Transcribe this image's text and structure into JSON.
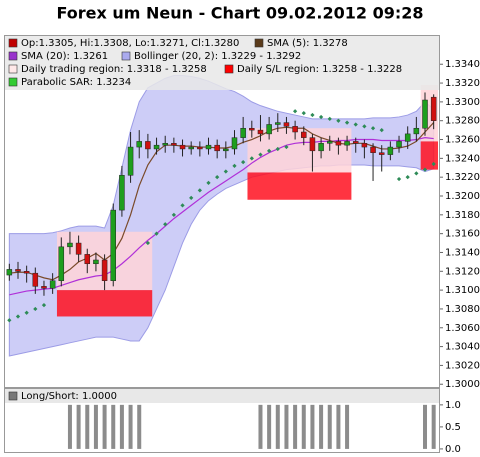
{
  "chart_data": [
    {
      "type": "candlestick",
      "title": "Forex um Neun - Chart 09.02.2012 09:28",
      "legend": [
        {
          "label": "Op:1.3305, Hi:1.3308, Lo:1.3271, Cl:1.3280",
          "color": "#c00000"
        },
        {
          "label": "SMA (5): 1.3278",
          "color": "#5a3a1a"
        },
        {
          "label": "SMA (20): 1.3261",
          "color": "#9933cc"
        },
        {
          "label": "Bollinger (20, 2): 1.3229 - 1.3292",
          "color": "#aaaaee"
        },
        {
          "label": "Daily trading region: 1.3318 - 1.3258",
          "color": "#ffe8e8"
        },
        {
          "label": "Daily S/L region: 1.3258 - 1.3228",
          "color": "#ff0000"
        },
        {
          "label": "Parabolic SAR: 1.3234",
          "color": "#33cc33"
        }
      ],
      "up_color": "#1e9e1e",
      "down_color": "#d01010",
      "open": [
        1.3116,
        1.3122,
        1.312,
        1.3118,
        1.3104,
        1.3102,
        1.311,
        1.3146,
        1.315,
        1.3138,
        1.3128,
        1.3132,
        1.311,
        1.3185,
        1.3222,
        1.3252,
        1.3258,
        1.325,
        1.3254,
        1.3256,
        1.3254,
        1.325,
        1.3252,
        1.325,
        1.3254,
        1.3248,
        1.325,
        1.3262,
        1.3272,
        1.327,
        1.3266,
        1.3276,
        1.3278,
        1.3274,
        1.3268,
        1.3262,
        1.3248,
        1.3256,
        1.3258,
        1.3254,
        1.3258,
        1.3256,
        1.3252,
        1.3246,
        1.3244,
        1.3252,
        1.3258,
        1.3266,
        1.3272,
        1.3305
      ],
      "high": [
        1.3128,
        1.313,
        1.3126,
        1.3124,
        1.311,
        1.3118,
        1.3156,
        1.3162,
        1.3158,
        1.3144,
        1.314,
        1.3138,
        1.3192,
        1.3232,
        1.3268,
        1.327,
        1.3266,
        1.3262,
        1.3264,
        1.3262,
        1.326,
        1.3258,
        1.3258,
        1.3262,
        1.326,
        1.3258,
        1.327,
        1.3284,
        1.328,
        1.3286,
        1.3284,
        1.3288,
        1.3284,
        1.328,
        1.3274,
        1.3266,
        1.3262,
        1.3264,
        1.3262,
        1.3264,
        1.3262,
        1.326,
        1.3256,
        1.3254,
        1.3258,
        1.3264,
        1.3274,
        1.3284,
        1.331,
        1.3308
      ],
      "low": [
        1.311,
        1.3112,
        1.3108,
        1.3096,
        1.3094,
        1.3096,
        1.3104,
        1.3138,
        1.313,
        1.3118,
        1.312,
        1.31,
        1.3104,
        1.3178,
        1.3214,
        1.324,
        1.324,
        1.3244,
        1.3246,
        1.3246,
        1.3242,
        1.3244,
        1.3242,
        1.3244,
        1.324,
        1.324,
        1.3244,
        1.3256,
        1.3262,
        1.3258,
        1.326,
        1.3268,
        1.3266,
        1.326,
        1.3254,
        1.3226,
        1.324,
        1.3248,
        1.3244,
        1.3248,
        1.3246,
        1.324,
        1.3216,
        1.3226,
        1.3238,
        1.3246,
        1.325,
        1.3258,
        1.3264,
        1.3271
      ],
      "close": [
        1.3122,
        1.312,
        1.3118,
        1.3104,
        1.3102,
        1.311,
        1.3146,
        1.315,
        1.3138,
        1.3128,
        1.3132,
        1.311,
        1.3185,
        1.3222,
        1.3252,
        1.3258,
        1.325,
        1.3254,
        1.3256,
        1.3254,
        1.325,
        1.3252,
        1.325,
        1.3254,
        1.3248,
        1.325,
        1.3262,
        1.3272,
        1.327,
        1.3266,
        1.3276,
        1.3278,
        1.3274,
        1.3268,
        1.3262,
        1.3248,
        1.3256,
        1.3258,
        1.3254,
        1.3258,
        1.3256,
        1.3252,
        1.3246,
        1.3244,
        1.3252,
        1.3258,
        1.3266,
        1.3272,
        1.3302,
        1.328
      ],
      "sma5": {
        "color": "#7a4a2a",
        "values": [
          1.3118,
          1.3119,
          1.3119,
          1.3116,
          1.3113,
          1.3111,
          1.3116,
          1.3122,
          1.313,
          1.3134,
          1.3139,
          1.3132,
          1.3139,
          1.3155,
          1.318,
          1.3211,
          1.3233,
          1.3247,
          1.3254,
          1.3254,
          1.3253,
          1.3253,
          1.3252,
          1.3252,
          1.3251,
          1.3251,
          1.3253,
          1.3257,
          1.326,
          1.3264,
          1.3269,
          1.3272,
          1.3273,
          1.3272,
          1.3272,
          1.3266,
          1.3262,
          1.3259,
          1.3256,
          1.3255,
          1.3256,
          1.3256,
          1.3253,
          1.325,
          1.325,
          1.3251,
          1.3253,
          1.3258,
          1.3268,
          1.3278
        ]
      },
      "sma20": {
        "color": "#b030d8",
        "values": [
          1.3095,
          1.3097,
          1.3099,
          1.31,
          1.3101,
          1.3102,
          1.3105,
          1.3108,
          1.3111,
          1.3113,
          1.3115,
          1.3116,
          1.3121,
          1.3128,
          1.3136,
          1.3145,
          1.3153,
          1.316,
          1.3168,
          1.3176,
          1.3183,
          1.319,
          1.3197,
          1.3204,
          1.321,
          1.3216,
          1.3222,
          1.3228,
          1.3235,
          1.3241,
          1.3246,
          1.325,
          1.3254,
          1.3256,
          1.3257,
          1.3257,
          1.3258,
          1.3258,
          1.3259,
          1.3259,
          1.326,
          1.326,
          1.326,
          1.3259,
          1.3259,
          1.3259,
          1.3259,
          1.326,
          1.3262,
          1.3261
        ]
      },
      "bollinger": {
        "fill": "#c8c8f6",
        "stroke": "#9c9ce6",
        "upper": [
          1.316,
          1.316,
          1.316,
          1.316,
          1.316,
          1.3161,
          1.3163,
          1.3166,
          1.3168,
          1.3168,
          1.3168,
          1.3166,
          1.319,
          1.323,
          1.327,
          1.33,
          1.3315,
          1.332,
          1.3325,
          1.3328,
          1.3328,
          1.3327,
          1.3325,
          1.3322,
          1.3318,
          1.3314,
          1.3311,
          1.3306,
          1.33,
          1.3296,
          1.3293,
          1.329,
          1.3288,
          1.3286,
          1.3284,
          1.3282,
          1.3282,
          1.3282,
          1.3282,
          1.3282,
          1.3282,
          1.3282,
          1.3283,
          1.3283,
          1.3283,
          1.3284,
          1.3286,
          1.329,
          1.33,
          1.3292
        ],
        "lower": [
          1.303,
          1.3032,
          1.3034,
          1.3036,
          1.3038,
          1.304,
          1.3042,
          1.3044,
          1.3046,
          1.3048,
          1.305,
          1.305,
          1.305,
          1.3048,
          1.3046,
          1.3046,
          1.306,
          1.308,
          1.31,
          1.3125,
          1.315,
          1.317,
          1.3185,
          1.3195,
          1.3202,
          1.3208,
          1.3212,
          1.3216,
          1.322,
          1.3222,
          1.3224,
          1.3226,
          1.3228,
          1.3229,
          1.323,
          1.3231,
          1.3232,
          1.3232,
          1.3233,
          1.3233,
          1.3233,
          1.3233,
          1.3232,
          1.3232,
          1.3232,
          1.3232,
          1.3231,
          1.323,
          1.3226,
          1.3229
        ]
      },
      "sar": {
        "color": "#2e8b57",
        "values": [
          1.3068,
          1.3072,
          1.3076,
          1.308,
          1.3084,
          null,
          null,
          null,
          null,
          null,
          null,
          null,
          null,
          null,
          null,
          null,
          1.315,
          1.316,
          1.317,
          1.318,
          1.319,
          1.3198,
          1.3206,
          1.3214,
          1.322,
          1.3226,
          1.3232,
          1.3236,
          1.324,
          1.3244,
          1.3248,
          1.325,
          1.3252,
          1.329,
          1.3288,
          1.3286,
          1.3284,
          1.3282,
          1.328,
          1.3278,
          1.3276,
          1.3274,
          1.3272,
          1.327,
          null,
          1.3218,
          1.322,
          1.3224,
          1.3228,
          1.3234
        ]
      },
      "region_color": "#ffd4d8",
      "sl_color": "#ff1020",
      "regions": [
        {
          "start": 6,
          "end": 16,
          "top": 1.3162,
          "mid": 1.31,
          "bottom": 1.3072
        },
        {
          "start": 28,
          "end": 39,
          "top": 1.3272,
          "mid": 1.3225,
          "bottom": 1.3196
        },
        {
          "start": 48,
          "end": 49,
          "top": 1.3318,
          "mid": 1.3258,
          "bottom": 1.3228
        }
      ],
      "ylim": [
        1.2996,
        1.337
      ],
      "yticks": [
        {
          "value": 1.3,
          "label": "1.3000"
        },
        {
          "value": 1.302,
          "label": "1.3020"
        },
        {
          "value": 1.304,
          "label": "1.3040"
        },
        {
          "value": 1.306,
          "label": "1.3060"
        },
        {
          "value": 1.308,
          "label": "1.3080"
        },
        {
          "value": 1.31,
          "label": "1.3100"
        },
        {
          "value": 1.312,
          "label": "1.3120"
        },
        {
          "value": 1.314,
          "label": "1.3140"
        },
        {
          "value": 1.316,
          "label": "1.3160"
        },
        {
          "value": 1.318,
          "label": "1.3180"
        },
        {
          "value": 1.32,
          "label": "1.3200"
        },
        {
          "value": 1.322,
          "label": "1.3220"
        },
        {
          "value": 1.324,
          "label": "1.3240"
        },
        {
          "value": 1.326,
          "label": "1.3260"
        },
        {
          "value": 1.328,
          "label": "1.3280"
        },
        {
          "value": 1.33,
          "label": "1.3300"
        },
        {
          "value": 1.332,
          "label": "1.3320"
        },
        {
          "value": 1.334,
          "label": "1.3340"
        }
      ]
    },
    {
      "type": "bar",
      "legend": [
        {
          "label": "Long/Short: 1.0000",
          "color": "#777777"
        }
      ],
      "color": "#8c8c8c",
      "values": [
        0,
        0,
        0,
        0,
        0,
        0,
        0,
        1,
        1,
        1,
        1,
        1,
        1,
        1,
        1,
        1,
        0,
        0,
        0,
        0,
        0,
        0,
        0,
        0,
        0,
        0,
        0,
        0,
        0,
        1,
        1,
        1,
        1,
        1,
        1,
        1,
        1,
        1,
        1,
        1,
        0,
        0,
        0,
        0,
        0,
        0,
        0,
        0,
        1,
        1
      ],
      "ylim": [
        -0.07,
        1.36
      ],
      "yticks": [
        {
          "value": 0,
          "label": "0.0"
        },
        {
          "value": 0.5,
          "label": "0.5"
        },
        {
          "value": 1,
          "label": "1.0"
        }
      ]
    }
  ]
}
